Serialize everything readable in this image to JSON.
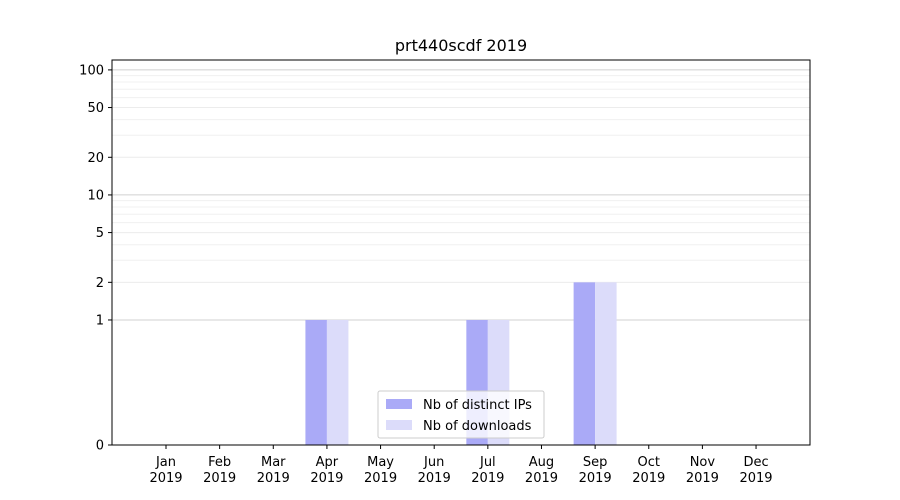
{
  "chart_data": {
    "type": "bar",
    "title": "prt440scdf 2019",
    "xlabel": "",
    "ylabel": "",
    "y_scale": "symlog",
    "ylim": [
      0,
      120
    ],
    "y_ticks": [
      0,
      1,
      2,
      5,
      10,
      20,
      50,
      100
    ],
    "y_tick_labels": [
      "0",
      "1",
      "2",
      "5",
      "10",
      "20",
      "50",
      "100"
    ],
    "grid": true,
    "legend_position": "bottom-center",
    "categories": [
      [
        "Jan",
        "2019"
      ],
      [
        "Feb",
        "2019"
      ],
      [
        "Mar",
        "2019"
      ],
      [
        "Apr",
        "2019"
      ],
      [
        "May",
        "2019"
      ],
      [
        "Jun",
        "2019"
      ],
      [
        "Jul",
        "2019"
      ],
      [
        "Aug",
        "2019"
      ],
      [
        "Sep",
        "2019"
      ],
      [
        "Oct",
        "2019"
      ],
      [
        "Nov",
        "2019"
      ],
      [
        "Dec",
        "2019"
      ]
    ],
    "series": [
      {
        "name": "Nb of distinct IPs",
        "color": "#aaaaf7",
        "values": [
          0,
          0,
          0,
          1,
          0,
          0,
          1,
          0,
          2,
          0,
          0,
          0
        ]
      },
      {
        "name": "Nb of downloads",
        "color": "#dcdcfa",
        "values": [
          0,
          0,
          0,
          1,
          0,
          0,
          1,
          0,
          2,
          0,
          0,
          0
        ]
      }
    ]
  }
}
